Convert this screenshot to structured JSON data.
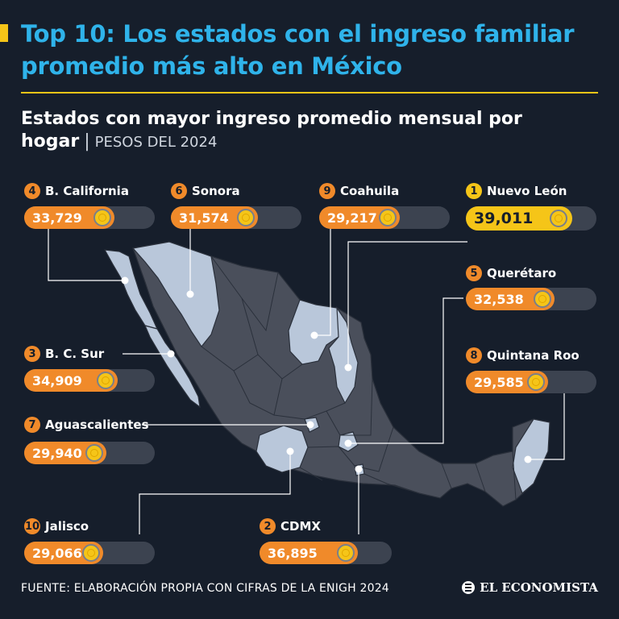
{
  "header": {
    "title": "Top 10: Los estados con el ingreso familiar promedio más alto en México",
    "subtitle_bold": "Estados con mayor ingreso promedio mensual por hogar",
    "subtitle_separator": "|",
    "subtitle_unit": "PESOS DEL 2024"
  },
  "states": [
    {
      "rank": "1",
      "name": "Nuevo León",
      "value": "39,011"
    },
    {
      "rank": "2",
      "name": "CDMX",
      "value": "36,895"
    },
    {
      "rank": "3",
      "name": "B. C. Sur",
      "value": "34,909"
    },
    {
      "rank": "4",
      "name": "B. California",
      "value": "33,729"
    },
    {
      "rank": "5",
      "name": "Querétaro",
      "value": "32,538"
    },
    {
      "rank": "6",
      "name": "Sonora",
      "value": "31,574"
    },
    {
      "rank": "7",
      "name": "Aguascalientes",
      "value": "29,940"
    },
    {
      "rank": "8",
      "name": "Quintana Roo",
      "value": "29,585"
    },
    {
      "rank": "9",
      "name": "Coahuila",
      "value": "29,217"
    },
    {
      "rank": "10",
      "name": "Jalisco",
      "value": "29,066"
    }
  ],
  "colors": {
    "background": "#161e2b",
    "title": "#2fb3ea",
    "accent": "#f5c518",
    "pill": "#f08a2a",
    "track": "#3c4350",
    "map_state": "#4a4f5b",
    "map_highlight": "#b9c7da"
  },
  "footer": {
    "source": "FUENTE: ELABORACIÓN PROPIA CON CIFRAS DE LA ENIGH 2024",
    "brand": "EL ECONOMISTA",
    "brand_icon": "newspaper-icon"
  }
}
